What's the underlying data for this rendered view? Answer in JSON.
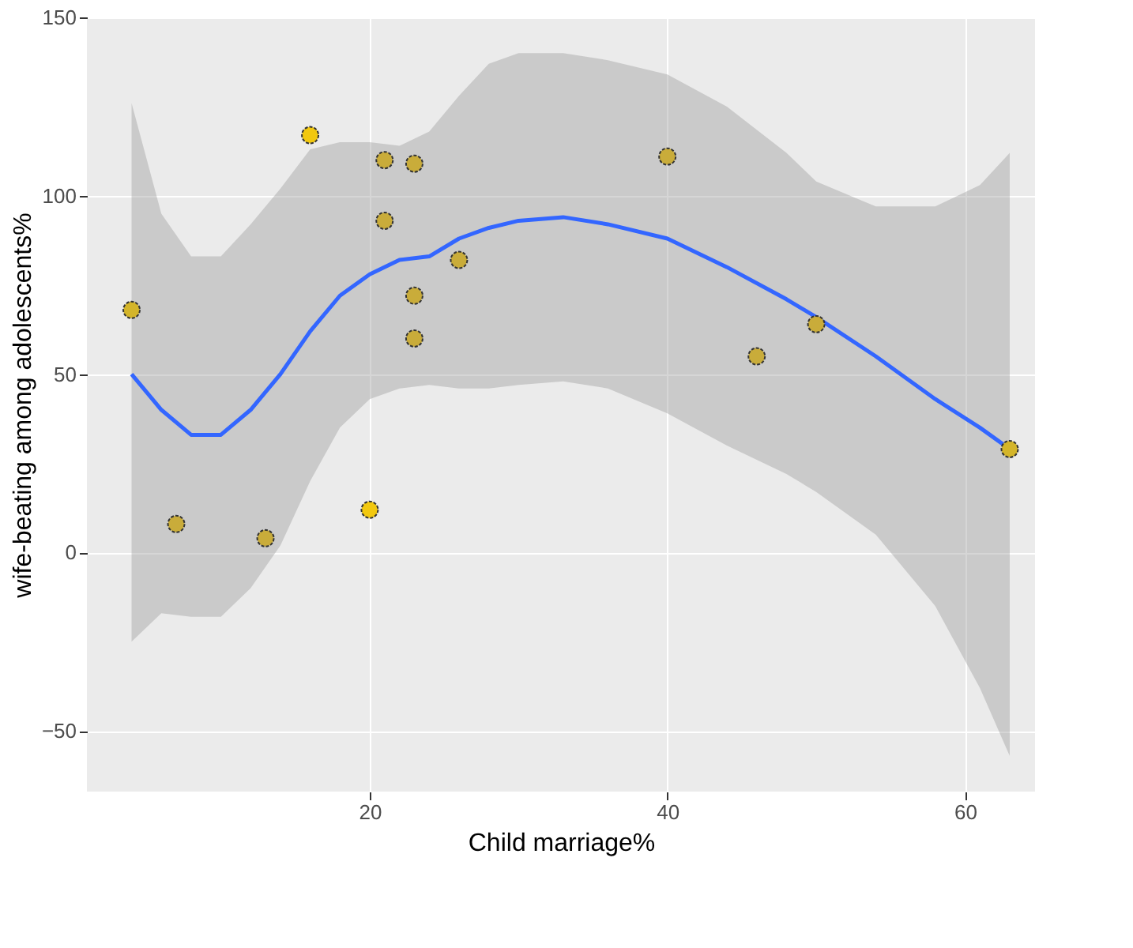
{
  "chart_data": {
    "type": "scatter",
    "xlabel": "Child marriage%",
    "ylabel": "wife-beating among adolescents%",
    "xlim": [
      1,
      64.7
    ],
    "ylim": [
      -67,
      150
    ],
    "xticks": [
      20,
      40,
      60
    ],
    "yticks": [
      -50,
      0,
      50,
      100,
      150
    ],
    "grid": true,
    "series": [
      {
        "color": "#c9ac3a",
        "marker": "circle",
        "x": [
          4,
          7,
          13,
          16,
          20,
          21,
          21,
          23,
          23,
          23,
          26,
          40,
          46,
          50,
          63
        ],
        "values": [
          68,
          8,
          4,
          117,
          12,
          110,
          93,
          109,
          72,
          60,
          82,
          111,
          55,
          64,
          29
        ],
        "colors": [
          "#d4b52a",
          "#c9ac3a",
          "#c9ac3a",
          "#f2c80f",
          "#f2c80f",
          "#c9ac3a",
          "#c9ac3a",
          "#c9ac3a",
          "#c9ac3a",
          "#c9ac3a",
          "#c9ac3a",
          "#c9ac3a",
          "#c9ac3a",
          "#c9ac3a",
          "#d4b52a"
        ]
      },
      {
        "type": "line",
        "color": "#3366ff",
        "line_style": "solid",
        "marker": "none",
        "x": [
          4,
          6,
          8,
          10,
          12,
          14,
          16,
          18,
          20,
          22,
          24,
          26,
          28,
          30,
          33,
          36,
          40,
          44,
          48,
          50,
          54,
          58,
          61,
          63
        ],
        "values": [
          50,
          40,
          33,
          33,
          40,
          50,
          62,
          72,
          78,
          82,
          83,
          88,
          91,
          93,
          94,
          92,
          88,
          80,
          71,
          66,
          55,
          43,
          35,
          29
        ],
        "lower": [
          -25,
          -17,
          -18,
          -18,
          -10,
          2,
          20,
          35,
          43,
          46,
          47,
          46,
          46,
          47,
          48,
          46,
          39,
          30,
          22,
          17,
          5,
          -15,
          -38,
          -57
        ],
        "upper": [
          126,
          95,
          83,
          83,
          92,
          102,
          113,
          115,
          115,
          114,
          118,
          128,
          137,
          140,
          140,
          138,
          134,
          125,
          112,
          104,
          97,
          97,
          103,
          112
        ]
      }
    ]
  }
}
